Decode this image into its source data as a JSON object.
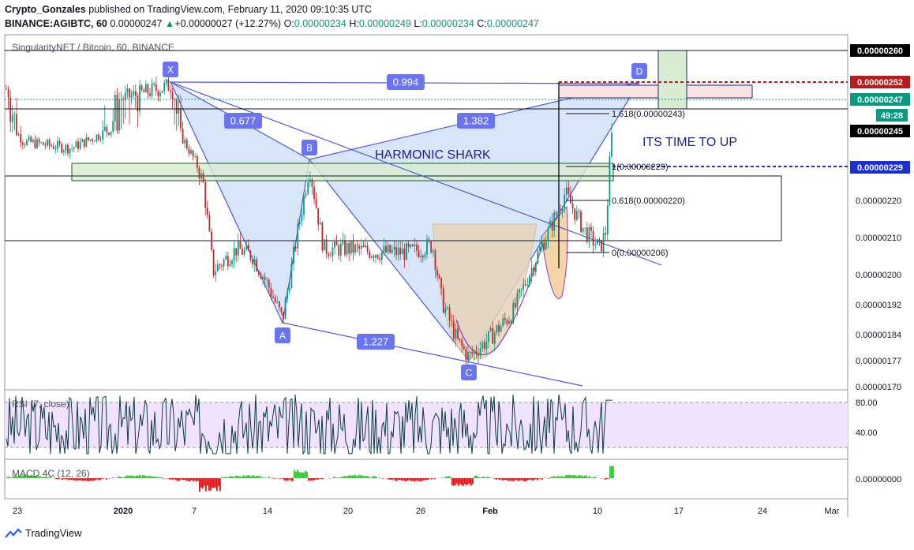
{
  "header": {
    "author": "Crypto_Gonzales",
    "published_text": "published on TradingView.com, February 11, 2020 09:10:35 UTC",
    "symbol": "BINANCE:AGIBTC, 60",
    "last": "0.00000247",
    "change_arrow": "▲",
    "change": "+0.00000027 (+12.27%)",
    "o_label": "O:",
    "o_value": "0.00000234",
    "h_label": "H:",
    "h_value": "0.00000249",
    "l_label": "L:",
    "l_value": "0.00000234",
    "c_label": "C:",
    "c_value": "0.00000247"
  },
  "chart_title": "SingularityNET / Bitcoin, 60, BINANCE",
  "footer": {
    "brand": "TradingView",
    "icon": "tradingview-logo-icon"
  },
  "colors": {
    "up": "#089981",
    "down": "#c62828",
    "pattern_fill": "#c9dcf7",
    "pattern_line": "#4c57e0",
    "label_bg": "#6a73f0",
    "cup_fill": "#e6d2bb",
    "handle_fill": "#f6d5a8",
    "rsi_band": "#f1e3fb",
    "macd_up": "#2dc52d",
    "macd_down": "#d41818",
    "red_level": "#b71c1c",
    "blue_level": "#1a2fd6"
  },
  "chart_data": {
    "type": "candlestick",
    "x_ticks": [
      "23",
      "2020",
      "7",
      "14",
      "20",
      "26",
      "Feb",
      "10",
      "17",
      "24",
      "Mar"
    ],
    "y_ticks": [
      "0.00000260",
      "0.00000220",
      "0.00000210",
      "0.00000200",
      "0.00000192",
      "0.00000184",
      "0.00000177",
      "0.00000170"
    ],
    "price_labels": [
      {
        "value": "0.00000260",
        "style": "dark"
      },
      {
        "value": "0.00000252",
        "style": "red"
      },
      {
        "value": "0.00000247",
        "style": "green"
      },
      {
        "value": "49:28",
        "style": "green"
      },
      {
        "value": "0.00000245",
        "style": "dark"
      },
      {
        "value": "0.00000229",
        "style": "blue"
      }
    ],
    "pattern_points": [
      {
        "label": "X",
        "price": 2.51e-06
      },
      {
        "label": "A",
        "price": 1.87e-06
      },
      {
        "label": "B",
        "price": 2.31e-06
      },
      {
        "label": "C",
        "price": 1.77e-06
      },
      {
        "label": "D",
        "price": 2.52e-06
      }
    ],
    "ratios": [
      "0.994",
      "0.677",
      "1.382",
      "1.227"
    ],
    "fib_levels": [
      {
        "text": "1.618(0.00000243)"
      },
      {
        "text": "1(0.00000229)"
      },
      {
        "text": "0.618(0.00000220)"
      },
      {
        "text": "0(0.00000206)"
      }
    ],
    "annotations": [
      "HARMONIC SHARK",
      "ITS TIME TO UP"
    ],
    "rsi": {
      "label": "RSI (7, close)",
      "levels": [
        "80.00",
        "40.00"
      ]
    },
    "macd": {
      "label": "MACD 4C (12, 26)",
      "level": "0.00000000"
    }
  }
}
